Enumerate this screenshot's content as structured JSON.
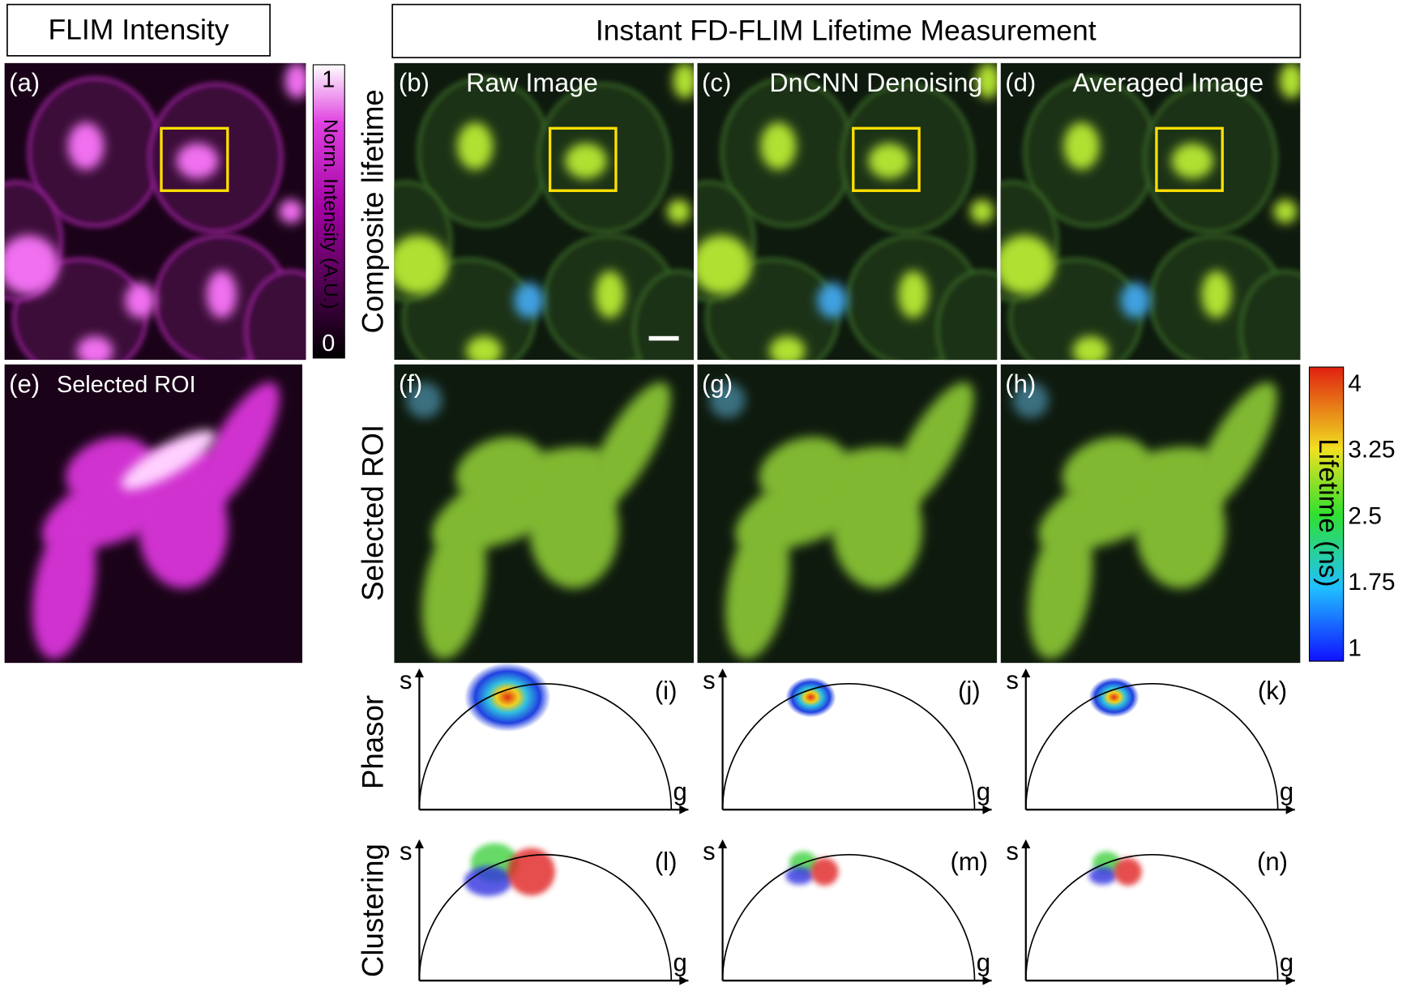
{
  "header": {
    "left_title": "FLIM Intensity",
    "right_title": "Instant FD-FLIM Lifetime Measurement"
  },
  "row_labels": [
    "Composite lifetime",
    "Selected ROI",
    "Phasor",
    "Clustering"
  ],
  "panels": [
    {
      "label": "(a)"
    },
    {
      "label": "(b)",
      "title": "Raw Image"
    },
    {
      "label": "(c)",
      "title": "DnCNN Denoising"
    },
    {
      "label": "(d)",
      "title": "Averaged Image"
    },
    {
      "label": "(e)",
      "title": "Selected ROI"
    },
    {
      "label": "(f)"
    },
    {
      "label": "(g)"
    },
    {
      "label": "(h)"
    },
    {
      "label": "(i)"
    },
    {
      "label": "(j)"
    },
    {
      "label": "(k)"
    },
    {
      "label": "(l)"
    },
    {
      "label": "(m)"
    },
    {
      "label": "(n)"
    }
  ],
  "intensity_colorbar": {
    "label": "Norm. Intensity (A.U.)",
    "ticks": [
      1,
      0
    ]
  },
  "lifetime_colorbar": {
    "label": "Lifetime (ns)",
    "ticks": [
      4,
      3.25,
      2.5,
      1.75,
      1
    ]
  },
  "phasor_axes": {
    "y": "s",
    "x": "g"
  }
}
